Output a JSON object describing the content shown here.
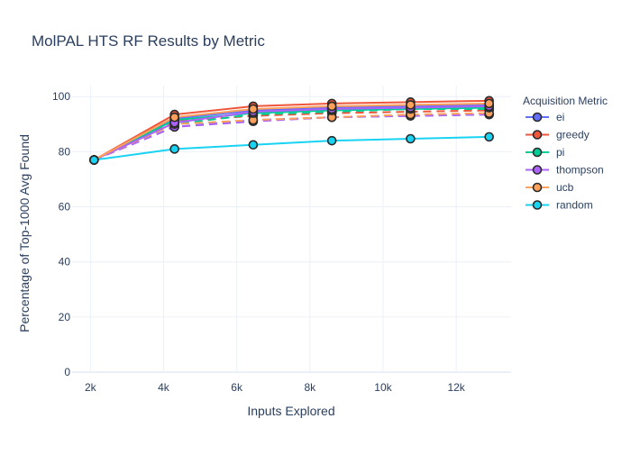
{
  "chart_data": {
    "type": "line",
    "title": "MolPAL HTS RF Results by Metric",
    "xlabel": "Inputs Explored",
    "ylabel": "Percentage of Top-1000 Avg Found",
    "xlim": [
      1500,
      13500
    ],
    "ylim": [
      0,
      104
    ],
    "grid": true,
    "xticks": [
      2000,
      4000,
      6000,
      8000,
      10000,
      12000
    ],
    "xtick_labels": [
      "2k",
      "4k",
      "6k",
      "8k",
      "10k",
      "12k"
    ],
    "yticks": [
      0,
      20,
      40,
      60,
      80,
      100
    ],
    "legend": {
      "title": "Acquisition Metric",
      "position": "right"
    },
    "x": [
      2100,
      4300,
      6450,
      8600,
      10750,
      12900
    ],
    "series": [
      {
        "name": "ei",
        "color": "#636efa",
        "variants": [
          {
            "dash": "solid",
            "values": [
              77,
              92,
              95,
              96,
              96.5,
              97
            ]
          },
          {
            "dash": "dash",
            "values": [
              77,
              89,
              91.5,
              92.5,
              93,
              93.5
            ]
          }
        ]
      },
      {
        "name": "greedy",
        "color": "#ef553b",
        "variants": [
          {
            "dash": "solid",
            "values": [
              77,
              93.5,
              96.5,
              97.5,
              98,
              98.5
            ]
          },
          {
            "dash": "dash",
            "values": [
              77,
              91,
              93,
              94,
              94.5,
              95
            ]
          }
        ]
      },
      {
        "name": "pi",
        "color": "#00cc96",
        "variants": [
          {
            "dash": "solid",
            "values": [
              77,
              91.5,
              94,
              95,
              95.5,
              96
            ]
          },
          {
            "dash": "dash",
            "values": [
              77,
              90,
              93.5,
              94.5,
              95.5,
              95.5
            ]
          }
        ]
      },
      {
        "name": "thompson",
        "color": "#ab63fa",
        "variants": [
          {
            "dash": "solid",
            "values": [
              77,
              90.5,
              94.5,
              95.5,
              96,
              96.5
            ]
          },
          {
            "dash": "dash",
            "values": [
              77,
              89,
              91,
              92.5,
              93,
              93.5
            ]
          }
        ]
      },
      {
        "name": "ucb",
        "color": "#ffa15a",
        "variants": [
          {
            "dash": "solid",
            "values": [
              77,
              92.5,
              95.5,
              96.5,
              97,
              97.5
            ]
          },
          {
            "dash": "dash",
            "values": [
              77,
              90,
              91.5,
              92.5,
              93.5,
              94
            ]
          }
        ]
      },
      {
        "name": "random",
        "color": "#19d3f3",
        "variants": [
          {
            "dash": "solid",
            "values": [
              77,
              81,
              82.5,
              84,
              84.7,
              85.4
            ]
          }
        ]
      }
    ]
  }
}
